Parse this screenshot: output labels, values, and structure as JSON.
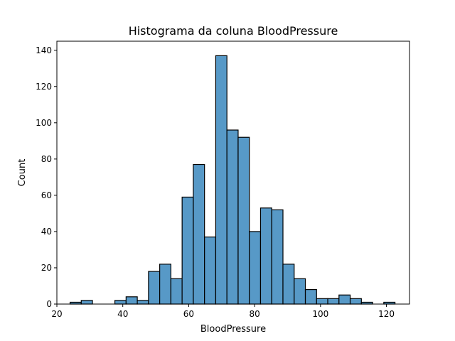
{
  "chart_data": {
    "type": "bar",
    "title": "Histograma da coluna BloodPressure",
    "xlabel": "BloodPressure",
    "ylabel": "Count",
    "xlim": [
      20,
      127
    ],
    "ylim": [
      0,
      145
    ],
    "xticks": [
      20,
      40,
      60,
      80,
      100,
      120
    ],
    "yticks": [
      0,
      20,
      40,
      60,
      80,
      100,
      120,
      140
    ],
    "bar_color": "#5799c7",
    "edge_color": "#000000",
    "bins": [
      {
        "x0": 24.0,
        "x1": 27.4,
        "count": 1
      },
      {
        "x0": 27.4,
        "x1": 30.8,
        "count": 2
      },
      {
        "x0": 30.8,
        "x1": 34.2,
        "count": 0
      },
      {
        "x0": 34.2,
        "x1": 37.6,
        "count": 0
      },
      {
        "x0": 37.6,
        "x1": 41.0,
        "count": 2
      },
      {
        "x0": 41.0,
        "x1": 44.4,
        "count": 4
      },
      {
        "x0": 44.4,
        "x1": 47.8,
        "count": 2
      },
      {
        "x0": 47.8,
        "x1": 51.2,
        "count": 18
      },
      {
        "x0": 51.2,
        "x1": 54.6,
        "count": 22
      },
      {
        "x0": 54.6,
        "x1": 58.0,
        "count": 14
      },
      {
        "x0": 58.0,
        "x1": 61.4,
        "count": 59
      },
      {
        "x0": 61.4,
        "x1": 64.8,
        "count": 77
      },
      {
        "x0": 64.8,
        "x1": 68.2,
        "count": 37
      },
      {
        "x0": 68.2,
        "x1": 71.6,
        "count": 137
      },
      {
        "x0": 71.6,
        "x1": 75.0,
        "count": 96
      },
      {
        "x0": 75.0,
        "x1": 78.4,
        "count": 92
      },
      {
        "x0": 78.4,
        "x1": 81.8,
        "count": 40
      },
      {
        "x0": 81.8,
        "x1": 85.2,
        "count": 53
      },
      {
        "x0": 85.2,
        "x1": 88.6,
        "count": 52
      },
      {
        "x0": 88.6,
        "x1": 92.0,
        "count": 22
      },
      {
        "x0": 92.0,
        "x1": 95.4,
        "count": 14
      },
      {
        "x0": 95.4,
        "x1": 98.8,
        "count": 8
      },
      {
        "x0": 98.8,
        "x1": 102.2,
        "count": 3
      },
      {
        "x0": 102.2,
        "x1": 105.6,
        "count": 3
      },
      {
        "x0": 105.6,
        "x1": 109.0,
        "count": 5
      },
      {
        "x0": 109.0,
        "x1": 112.4,
        "count": 3
      },
      {
        "x0": 112.4,
        "x1": 115.8,
        "count": 1
      },
      {
        "x0": 115.8,
        "x1": 119.2,
        "count": 0
      },
      {
        "x0": 119.2,
        "x1": 122.6,
        "count": 1
      }
    ]
  }
}
